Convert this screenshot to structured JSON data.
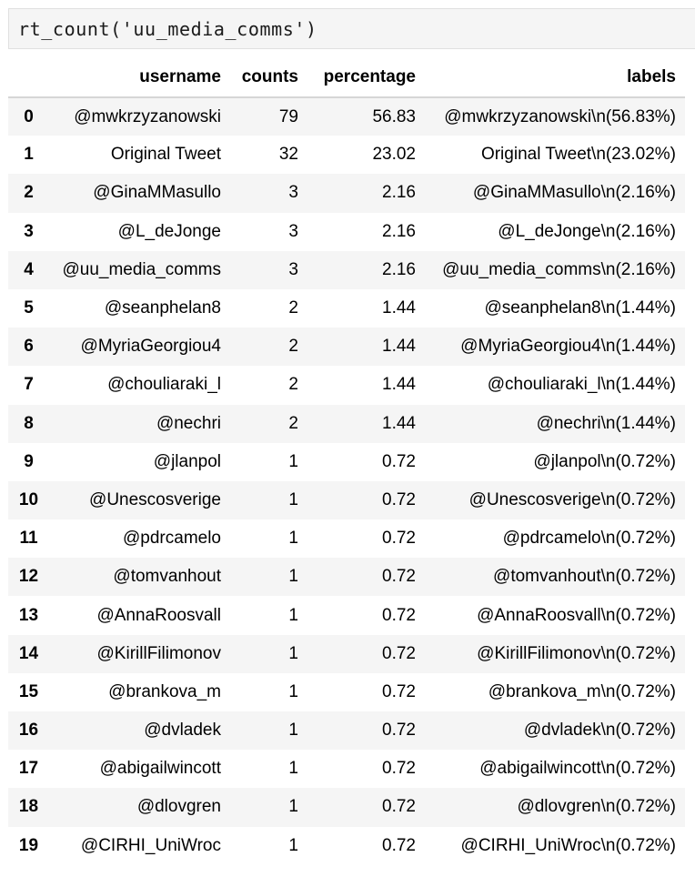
{
  "cell": {
    "code": "rt_count('uu_media_comms')"
  },
  "table": {
    "columns": [
      "",
      "username",
      "counts",
      "percentage",
      "labels"
    ],
    "rows": [
      {
        "index": "0",
        "username": "@mwkrzyzanowski",
        "counts": "79",
        "percentage": "56.83",
        "labels": "@mwkrzyzanowski\\n(56.83%)"
      },
      {
        "index": "1",
        "username": "Original Tweet",
        "counts": "32",
        "percentage": "23.02",
        "labels": "Original Tweet\\n(23.02%)"
      },
      {
        "index": "2",
        "username": "@GinaMMasullo",
        "counts": "3",
        "percentage": "2.16",
        "labels": "@GinaMMasullo\\n(2.16%)"
      },
      {
        "index": "3",
        "username": "@L_deJonge",
        "counts": "3",
        "percentage": "2.16",
        "labels": "@L_deJonge\\n(2.16%)"
      },
      {
        "index": "4",
        "username": "@uu_media_comms",
        "counts": "3",
        "percentage": "2.16",
        "labels": "@uu_media_comms\\n(2.16%)"
      },
      {
        "index": "5",
        "username": "@seanphelan8",
        "counts": "2",
        "percentage": "1.44",
        "labels": "@seanphelan8\\n(1.44%)"
      },
      {
        "index": "6",
        "username": "@MyriaGeorgiou4",
        "counts": "2",
        "percentage": "1.44",
        "labels": "@MyriaGeorgiou4\\n(1.44%)"
      },
      {
        "index": "7",
        "username": "@chouliaraki_l",
        "counts": "2",
        "percentage": "1.44",
        "labels": "@chouliaraki_l\\n(1.44%)"
      },
      {
        "index": "8",
        "username": "@nechri",
        "counts": "2",
        "percentage": "1.44",
        "labels": "@nechri\\n(1.44%)"
      },
      {
        "index": "9",
        "username": "@jlanpol",
        "counts": "1",
        "percentage": "0.72",
        "labels": "@jlanpol\\n(0.72%)"
      },
      {
        "index": "10",
        "username": "@Unescosverige",
        "counts": "1",
        "percentage": "0.72",
        "labels": "@Unescosverige\\n(0.72%)"
      },
      {
        "index": "11",
        "username": "@pdrcamelo",
        "counts": "1",
        "percentage": "0.72",
        "labels": "@pdrcamelo\\n(0.72%)"
      },
      {
        "index": "12",
        "username": "@tomvanhout",
        "counts": "1",
        "percentage": "0.72",
        "labels": "@tomvanhout\\n(0.72%)"
      },
      {
        "index": "13",
        "username": "@AnnaRoosvall",
        "counts": "1",
        "percentage": "0.72",
        "labels": "@AnnaRoosvall\\n(0.72%)"
      },
      {
        "index": "14",
        "username": "@KirillFilimonov",
        "counts": "1",
        "percentage": "0.72",
        "labels": "@KirillFilimonov\\n(0.72%)"
      },
      {
        "index": "15",
        "username": "@brankova_m",
        "counts": "1",
        "percentage": "0.72",
        "labels": "@brankova_m\\n(0.72%)"
      },
      {
        "index": "16",
        "username": "@dvladek",
        "counts": "1",
        "percentage": "0.72",
        "labels": "@dvladek\\n(0.72%)"
      },
      {
        "index": "17",
        "username": "@abigailwincott",
        "counts": "1",
        "percentage": "0.72",
        "labels": "@abigailwincott\\n(0.72%)"
      },
      {
        "index": "18",
        "username": "@dlovgren",
        "counts": "1",
        "percentage": "0.72",
        "labels": "@dlovgren\\n(0.72%)"
      },
      {
        "index": "19",
        "username": "@CIRHI_UniWroc",
        "counts": "1",
        "percentage": "0.72",
        "labels": "@CIRHI_UniWroc\\n(0.72%)"
      }
    ]
  },
  "colors": {
    "cell_background": "#f5f5f5",
    "cell_border": "#e0e0e0",
    "row_striped": "#f5f5f5",
    "header_rule": "#d6d6d6"
  }
}
